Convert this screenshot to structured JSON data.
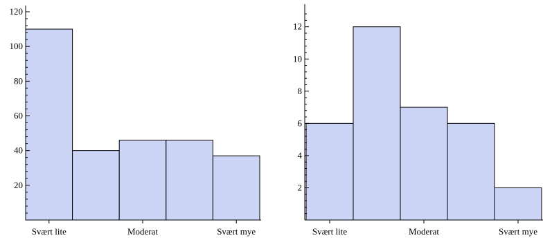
{
  "chart_data": [
    {
      "type": "bar",
      "categories": [
        "Svært lite",
        "",
        "Moderat",
        "",
        "Svært mye"
      ],
      "values": [
        110,
        40,
        46,
        46,
        37
      ],
      "ylim": [
        0,
        120
      ],
      "y_tick_labels": [
        "20",
        "40",
        "60",
        "80",
        "100",
        "120"
      ],
      "x_tick_labels": [
        "Svært lite",
        "Moderat",
        "Svært mye"
      ],
      "title": "",
      "xlabel": "",
      "ylabel": "",
      "grid": false,
      "bar_color": "#ccd4f5",
      "edge_color": "#000000"
    },
    {
      "type": "bar",
      "categories": [
        "Svært lite",
        "",
        "Moderat",
        "",
        "Svært mye"
      ],
      "values": [
        6,
        12,
        7,
        6,
        2
      ],
      "ylim": [
        0,
        13
      ],
      "y_tick_labels": [
        "2",
        "4",
        "6",
        "8",
        "10",
        "12"
      ],
      "x_tick_labels": [
        "Svært lite",
        "Moderat",
        "Svært mye"
      ],
      "title": "",
      "xlabel": "",
      "ylabel": "",
      "grid": false,
      "bar_color": "#ccd4f5",
      "edge_color": "#000000"
    }
  ]
}
